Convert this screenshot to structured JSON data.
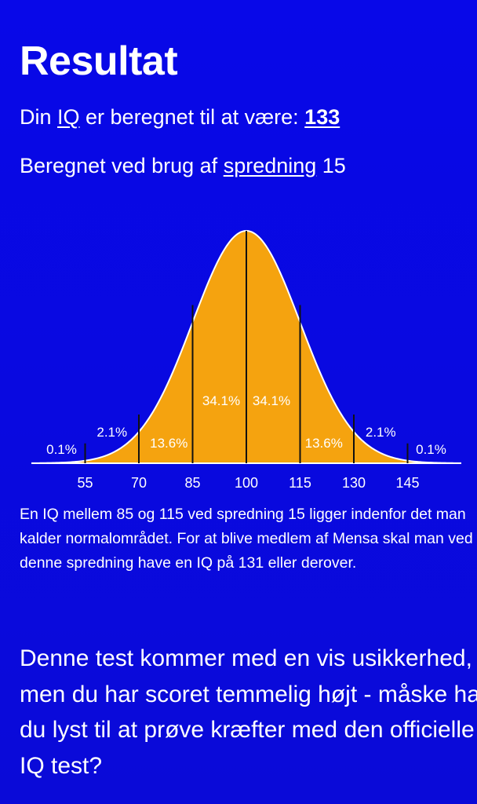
{
  "title": "Resultat",
  "iq_line": {
    "prefix": "Din ",
    "iq_link": "IQ",
    "middle": " er beregnet til at være: ",
    "score": "133"
  },
  "spread_line": {
    "prefix": "Beregnet ved brug af ",
    "spread_link": "spredning",
    "suffix": " 15"
  },
  "chart_data": {
    "type": "area",
    "distribution": "normal",
    "mean": 100,
    "sd": 15,
    "xlim": [
      40,
      160
    ],
    "x_ticks": [
      "55",
      "70",
      "85",
      "100",
      "115",
      "130",
      "145"
    ],
    "regions": [
      {
        "from": 40,
        "to": 55,
        "label": "0.1%"
      },
      {
        "from": 55,
        "to": 70,
        "label": "2.1%"
      },
      {
        "from": 70,
        "to": 85,
        "label": "13.6%"
      },
      {
        "from": 85,
        "to": 100,
        "label": "34.1%"
      },
      {
        "from": 100,
        "to": 115,
        "label": "34.1%"
      },
      {
        "from": 115,
        "to": 130,
        "label": "13.6%"
      },
      {
        "from": 130,
        "to": 145,
        "label": "2.1%"
      },
      {
        "from": 145,
        "to": 160,
        "label": "0.1%"
      }
    ],
    "colors": {
      "fill": "#f5a30f",
      "stroke": "#ffffff",
      "lines": "#111111"
    }
  },
  "paragraph": "En IQ mellem 85 og 115 ved spredning 15 ligger indenfor det man kalder normalområdet. For at blive medlem af Mensa skal man ved denne spredning have en IQ på 131 eller derover.",
  "closing": "Denne test kommer med en vis usikkerhed, men du har scoret temmelig højt - måske har du lyst til at prøve kræfter med den officielle IQ test?"
}
